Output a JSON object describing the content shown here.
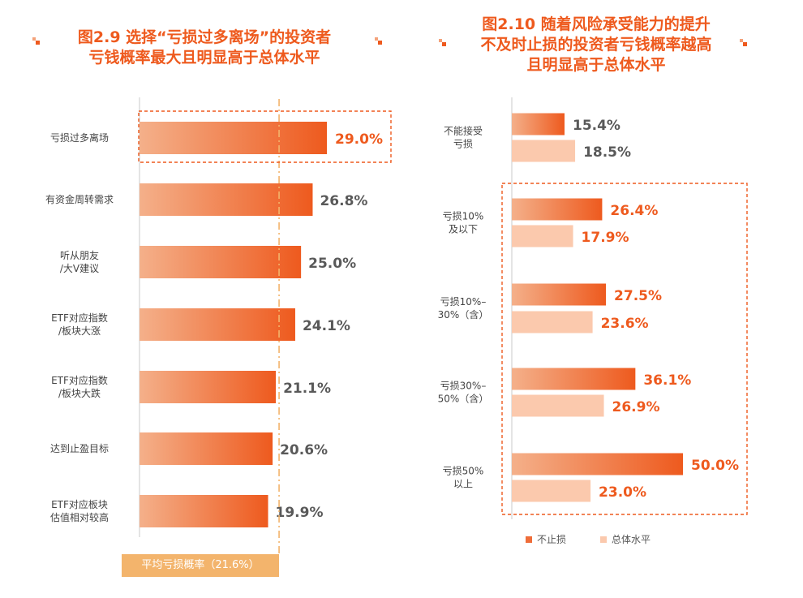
{
  "left_chart": {
    "title_line1": "图2.9  选择“亏损过多离场”的投资者",
    "title_line2": "亏钱概率最大且明显高于总体水平",
    "avg_label": "平均亏损概率（21.6%）",
    "avg_value": 21.6
  },
  "right_chart": {
    "title_line1": "图2.10  随着风险承受能力的提升",
    "title_line2": "不及时止损的投资者亏钱概率越高",
    "title_line3": "且明显高于总体水平",
    "legend_a": "不止损",
    "legend_b": "总体水平"
  },
  "colors": {
    "accent": "#ee5a1e",
    "bar_light": "#f4b08a",
    "bar_dark": "#ee5a1e",
    "total_bar": "#fbc9ad",
    "avg_line": "#f3b46c",
    "value_gray": "#595959"
  },
  "chart_data": [
    {
      "type": "bar",
      "orientation": "horizontal",
      "title": "图2.9 选择“亏损过多离场”的投资者亏钱概率最大且明显高于总体水平",
      "categories": [
        [
          "亏损过多离场"
        ],
        [
          "有资金周转需求"
        ],
        [
          "听从朋友",
          "/大V建议"
        ],
        [
          "ETF对应指数",
          "/板块大涨"
        ],
        [
          "ETF对应指数",
          "/板块大跌"
        ],
        [
          "达到止盈目标"
        ],
        [
          "ETF对应板块",
          "估值相对较高"
        ]
      ],
      "values": [
        29.0,
        26.8,
        25.0,
        24.1,
        21.1,
        20.6,
        19.9
      ],
      "labels": [
        "29.0%",
        "26.8%",
        "25.0%",
        "24.1%",
        "21.1%",
        "20.6%",
        "19.9%"
      ],
      "highlight_index": 0,
      "reference_line": 21.6,
      "unit": "%"
    },
    {
      "type": "bar",
      "orientation": "horizontal",
      "title": "图2.10 随着风险承受能力的提升不及时止损的投资者亏钱概率越高且明显高于总体水平",
      "categories": [
        [
          "不能接受",
          "亏损"
        ],
        [
          "亏损10%",
          "及以下"
        ],
        [
          "亏损10%–",
          "30%（含）"
        ],
        [
          "亏损30%–",
          "50%（含）"
        ],
        [
          "亏损50%",
          "以上"
        ]
      ],
      "series": [
        {
          "name": "不止损",
          "values": [
            15.4,
            26.4,
            27.5,
            36.1,
            50.0
          ],
          "labels": [
            "15.4%",
            "26.4%",
            "27.5%",
            "36.1%",
            "50.0%"
          ]
        },
        {
          "name": "总体水平",
          "values": [
            18.5,
            17.9,
            23.6,
            26.9,
            23.0
          ],
          "labels": [
            "18.5%",
            "17.9%",
            "23.6%",
            "26.9%",
            "23.0%"
          ]
        }
      ],
      "highlight_groups": [
        1,
        2,
        3,
        4
      ],
      "unit": "%"
    }
  ]
}
